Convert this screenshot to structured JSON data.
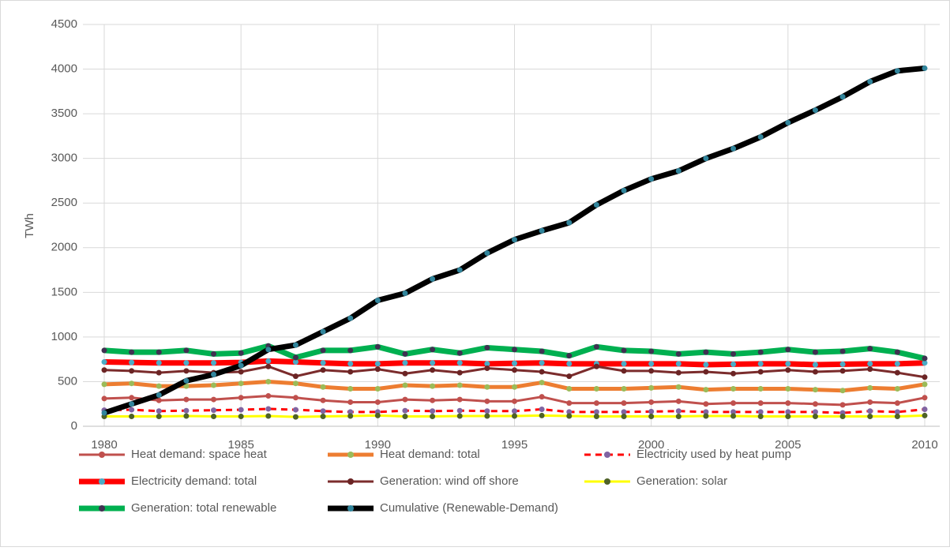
{
  "chart_data": {
    "type": "line",
    "y_label": "TWh",
    "x": [
      1980,
      1981,
      1982,
      1983,
      1984,
      1985,
      1986,
      1987,
      1988,
      1989,
      1990,
      1991,
      1992,
      1993,
      1994,
      1995,
      1996,
      1997,
      1998,
      1999,
      2000,
      2001,
      2002,
      2003,
      2004,
      2005,
      2006,
      2007,
      2008,
      2009,
      2010
    ],
    "xlim": [
      1980,
      2010
    ],
    "xticks": [
      1980,
      1985,
      1990,
      1995,
      2000,
      2005,
      2010
    ],
    "ylim": [
      0,
      4500
    ],
    "yticks": [
      0,
      500,
      1000,
      1500,
      2000,
      2500,
      3000,
      3500,
      4000,
      4500
    ],
    "grid": true,
    "legend": "bottom",
    "series": [
      {
        "name": "Heat demand: space heat",
        "color": "#c0504d",
        "marker_color": "#c0504d",
        "line_style": "solid",
        "line_weight": "normal",
        "values": [
          310,
          320,
          290,
          300,
          300,
          320,
          340,
          320,
          290,
          270,
          270,
          300,
          290,
          300,
          280,
          280,
          330,
          260,
          260,
          260,
          270,
          280,
          250,
          260,
          260,
          260,
          250,
          240,
          270,
          260,
          320
        ]
      },
      {
        "name": "Heat demand: total",
        "color": "#ed7d31",
        "marker_color": "#9bbb59",
        "line_style": "solid",
        "line_weight": "medium",
        "values": [
          470,
          480,
          450,
          450,
          460,
          480,
          500,
          480,
          440,
          420,
          420,
          460,
          450,
          460,
          440,
          440,
          490,
          420,
          420,
          420,
          430,
          440,
          410,
          420,
          420,
          420,
          410,
          400,
          430,
          420,
          470
        ]
      },
      {
        "name": "Electricity used by heat pump",
        "color": "#ff0000",
        "marker_color": "#8064a2",
        "line_style": "dashed",
        "line_weight": "normal",
        "values": [
          180,
          185,
          170,
          175,
          180,
          185,
          195,
          185,
          170,
          160,
          160,
          175,
          170,
          175,
          170,
          170,
          190,
          160,
          160,
          160,
          165,
          170,
          160,
          160,
          160,
          160,
          160,
          150,
          170,
          160,
          190
        ]
      },
      {
        "name": "Electricity demand: total",
        "color": "#ff0000",
        "marker_color": "#4bacc6",
        "line_style": "solid",
        "line_weight": "thick",
        "values": [
          720,
          715,
          710,
          710,
          710,
          715,
          730,
          720,
          710,
          700,
          700,
          710,
          710,
          710,
          700,
          705,
          710,
          700,
          700,
          700,
          700,
          700,
          690,
          695,
          700,
          700,
          690,
          695,
          700,
          700,
          710
        ]
      },
      {
        "name": "Generation: wind off shore",
        "color": "#7b2c2c",
        "marker_color": "#6b2424",
        "line_style": "solid",
        "line_weight": "normal",
        "values": [
          630,
          620,
          600,
          620,
          600,
          610,
          670,
          560,
          630,
          610,
          640,
          590,
          630,
          600,
          650,
          630,
          610,
          560,
          670,
          620,
          620,
          600,
          610,
          590,
          610,
          630,
          610,
          620,
          640,
          600,
          550
        ]
      },
      {
        "name": "Generation: solar",
        "color": "#ffff00",
        "marker_color": "#4f6228",
        "line_style": "solid",
        "line_weight": "normal",
        "values": [
          110,
          110,
          110,
          115,
          110,
          110,
          115,
          105,
          110,
          115,
          120,
          110,
          110,
          115,
          115,
          115,
          120,
          115,
          110,
          110,
          110,
          110,
          115,
          115,
          110,
          110,
          110,
          110,
          110,
          110,
          120
        ]
      },
      {
        "name": "Generation: total renewable",
        "color": "#00b050",
        "marker_color": "#3f3151",
        "line_style": "solid",
        "line_weight": "thick",
        "values": [
          850,
          830,
          830,
          850,
          810,
          820,
          900,
          770,
          850,
          850,
          890,
          810,
          860,
          820,
          880,
          860,
          840,
          790,
          890,
          850,
          840,
          810,
          830,
          810,
          830,
          860,
          830,
          840,
          870,
          830,
          760
        ]
      },
      {
        "name": "Cumulative (Renewable-Demand)",
        "color": "#000000",
        "marker_color": "#31859c",
        "line_style": "solid",
        "line_weight": "thick",
        "values": [
          150,
          250,
          350,
          510,
          580,
          680,
          860,
          910,
          1060,
          1210,
          1410,
          1490,
          1650,
          1750,
          1940,
          2090,
          2190,
          2280,
          2480,
          2640,
          2770,
          2860,
          3000,
          3110,
          3240,
          3400,
          3540,
          3690,
          3860,
          3980,
          4010
        ]
      }
    ]
  }
}
